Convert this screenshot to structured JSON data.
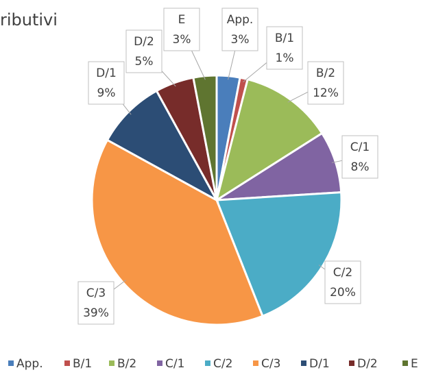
{
  "chart_data": {
    "type": "pie",
    "title": "ributivi",
    "categories": [
      "App.",
      "B/1",
      "B/2",
      "C/1",
      "C/2",
      "C/3",
      "D/1",
      "D/2",
      "E"
    ],
    "values": [
      3,
      1,
      12,
      8,
      20,
      39,
      9,
      5,
      3
    ],
    "value_labels": [
      "3%",
      "1%",
      "12%",
      "8%",
      "20%",
      "39%",
      "9%",
      "5%",
      "3%"
    ],
    "colors": [
      "#4a7ebb",
      "#c0504d",
      "#9bbb59",
      "#8064a2",
      "#4bacc6",
      "#f79646",
      "#2c4d75",
      "#772c2a",
      "#5f7530"
    ],
    "legend": "bottom"
  }
}
